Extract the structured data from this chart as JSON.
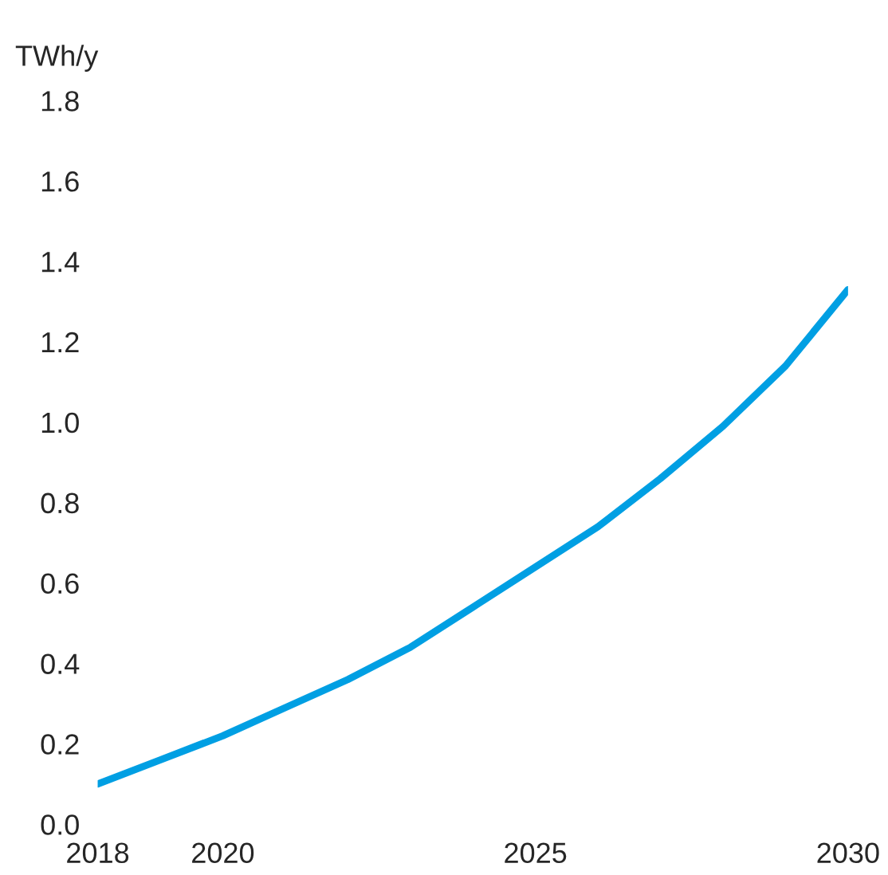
{
  "chart_data": {
    "type": "line",
    "ylabel": "TWh/y",
    "x": [
      2018,
      2019,
      2020,
      2021,
      2022,
      2023,
      2024,
      2025,
      2026,
      2027,
      2028,
      2029,
      2030
    ],
    "series": [
      {
        "color": "#009fe3",
        "values": [
          0.1,
          0.16,
          0.22,
          0.29,
          0.36,
          0.44,
          0.54,
          0.64,
          0.74,
          0.86,
          0.99,
          1.14,
          1.33
        ]
      }
    ],
    "xlim": [
      2018,
      2030
    ],
    "xticks": [
      2018,
      2020,
      2025,
      2030
    ],
    "ylim": [
      0,
      1.8
    ],
    "yticks": [
      {
        "value": 0,
        "label": "0.0"
      },
      {
        "value": 0.2,
        "label": "0.2"
      },
      {
        "value": 0.4,
        "label": "0.4"
      },
      {
        "value": 0.6,
        "label": "0.6"
      },
      {
        "value": 0.8,
        "label": "0.8"
      },
      {
        "value": 1.0,
        "label": "1.0"
      },
      {
        "value": 1.2,
        "label": "1.2"
      },
      {
        "value": 1.4,
        "label": "1.4"
      },
      {
        "value": 1.6,
        "label": "1.6"
      },
      {
        "value": 1.8,
        "label": "1.8"
      }
    ],
    "grid": false,
    "legend": false,
    "line_style": "solid"
  }
}
